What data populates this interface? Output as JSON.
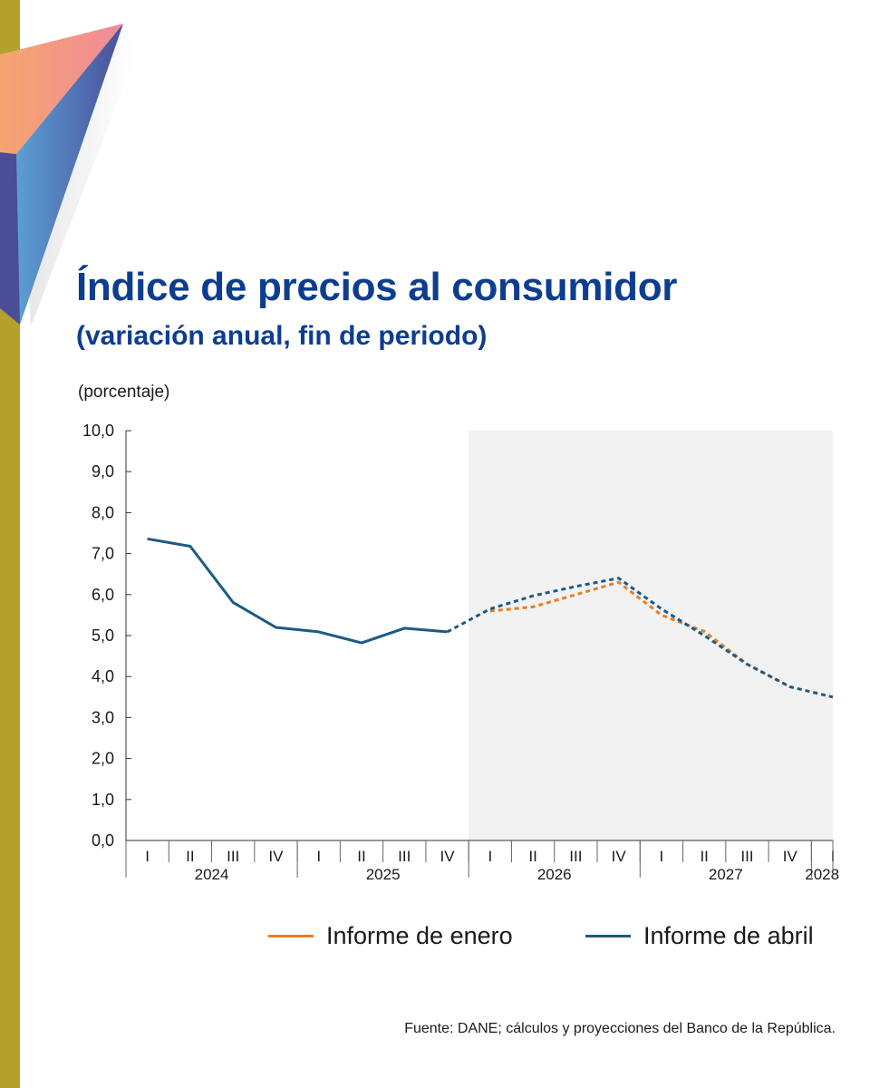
{
  "header": {
    "title": "Índice de precios al consumidor",
    "subtitle": "(variación anual, fin de periodo)",
    "unit_label": "(porcentaje)"
  },
  "footer": {
    "source": "Fuente: DANE; cálculos y proyecciones del Banco de la República."
  },
  "colors": {
    "january": "#e87e22",
    "april": "#1b5a86",
    "forecast_band": "#f2f2f2",
    "side_bar": "#b4a02c",
    "title": "#0d3d8f"
  },
  "chart_data": {
    "type": "line",
    "ylim": [
      0,
      10
    ],
    "yticks": [
      "0,0",
      "1,0",
      "2,0",
      "3,0",
      "4,0",
      "5,0",
      "6,0",
      "7,0",
      "8,0",
      "9,0",
      "10,0"
    ],
    "categories": [
      "I",
      "II",
      "III",
      "IV",
      "I",
      "II",
      "III",
      "IV",
      "I",
      "II",
      "III",
      "IV",
      "I",
      "II",
      "III",
      "IV",
      "I"
    ],
    "years": [
      {
        "label": "2024",
        "start": 0,
        "end": 3
      },
      {
        "label": "2025",
        "start": 4,
        "end": 7
      },
      {
        "label": "2026",
        "start": 8,
        "end": 11
      },
      {
        "label": "2027",
        "start": 12,
        "end": 15
      },
      {
        "label": "2028",
        "start": 16,
        "end": 16
      }
    ],
    "forecast_start_index": 8,
    "legend_position": "bottom",
    "grid": false,
    "series": [
      {
        "name": "Informe de enero",
        "key": "january",
        "values": [
          null,
          null,
          null,
          null,
          null,
          null,
          null,
          null,
          5.6,
          5.7,
          6.0,
          6.3,
          5.5,
          5.1,
          4.3,
          3.75,
          null
        ]
      },
      {
        "name": "Informe de abril",
        "key": "april",
        "values": [
          7.36,
          7.18,
          5.81,
          5.2,
          5.09,
          4.82,
          5.18,
          5.09,
          5.65,
          5.97,
          6.2,
          6.4,
          5.65,
          5.0,
          4.3,
          3.75,
          3.5
        ]
      }
    ]
  }
}
